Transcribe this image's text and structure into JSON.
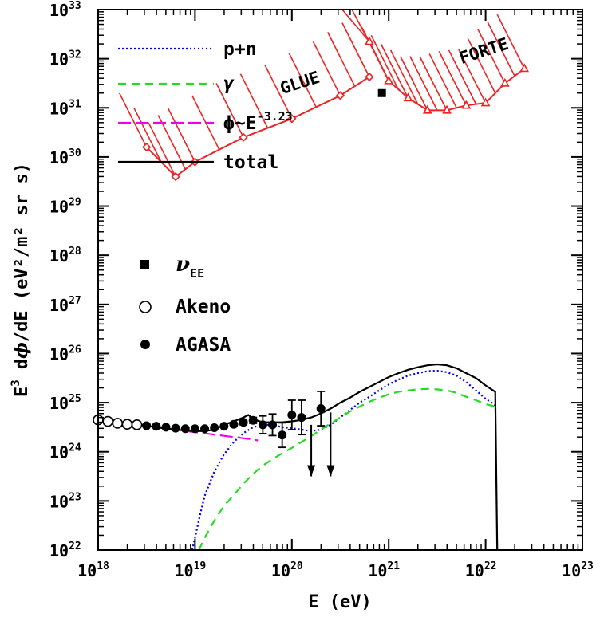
{
  "chart_data": {
    "type": "line",
    "xscale": "log",
    "yscale": "log",
    "xlim": [
      1e+18,
      1e+23
    ],
    "ylim": [
      1e+22,
      1e+33
    ],
    "x_ticks": [
      "18",
      "19",
      "20",
      "21",
      "22",
      "23"
    ],
    "y_ticks": [
      "22",
      "23",
      "24",
      "25",
      "26",
      "27",
      "28",
      "29",
      "30",
      "31",
      "32",
      "33"
    ],
    "tick_base": "10",
    "xlabel": "E (eV)",
    "ylabel": {
      "prefix": "E",
      "prefix_sup": "3",
      "middle": " d",
      "phi": "ϕ",
      "suffix": "/dE (eV²/m² sr s)"
    },
    "series": [
      {
        "name": "p+n",
        "color": "#0000ee",
        "dash": "2,3",
        "points": [
          [
            18.97,
            22.0
          ],
          [
            19.0,
            22.25
          ],
          [
            19.05,
            22.7
          ],
          [
            19.1,
            23.1
          ],
          [
            19.2,
            23.6
          ],
          [
            19.3,
            23.95
          ],
          [
            19.4,
            24.2
          ],
          [
            19.5,
            24.38
          ],
          [
            19.6,
            24.5
          ],
          [
            19.7,
            24.55
          ],
          [
            19.8,
            24.55
          ],
          [
            19.9,
            24.5
          ],
          [
            20.0,
            24.48
          ],
          [
            20.1,
            24.45
          ],
          [
            20.2,
            24.42
          ],
          [
            20.3,
            24.45
          ],
          [
            20.4,
            24.55
          ],
          [
            20.5,
            24.7
          ],
          [
            20.6,
            24.85
          ],
          [
            20.7,
            25.0
          ],
          [
            20.8,
            25.12
          ],
          [
            20.9,
            25.25
          ],
          [
            21.0,
            25.37
          ],
          [
            21.1,
            25.47
          ],
          [
            21.2,
            25.55
          ],
          [
            21.3,
            25.6
          ],
          [
            21.4,
            25.64
          ],
          [
            21.5,
            25.65
          ],
          [
            21.6,
            25.62
          ],
          [
            21.7,
            25.55
          ],
          [
            21.8,
            25.42
          ],
          [
            21.9,
            25.25
          ],
          [
            22.0,
            25.08
          ],
          [
            22.1,
            24.95
          ]
        ]
      },
      {
        "name": "γ",
        "color": "#22dd22",
        "dash": "10,7",
        "points": [
          [
            19.04,
            22.0
          ],
          [
            19.1,
            22.25
          ],
          [
            19.2,
            22.6
          ],
          [
            19.3,
            22.9
          ],
          [
            19.4,
            23.12
          ],
          [
            19.5,
            23.35
          ],
          [
            19.6,
            23.55
          ],
          [
            19.7,
            23.72
          ],
          [
            19.8,
            23.85
          ],
          [
            19.9,
            23.97
          ],
          [
            20.0,
            24.08
          ],
          [
            20.1,
            24.2
          ],
          [
            20.2,
            24.32
          ],
          [
            20.3,
            24.45
          ],
          [
            20.4,
            24.58
          ],
          [
            20.5,
            24.7
          ],
          [
            20.6,
            24.82
          ],
          [
            20.7,
            24.92
          ],
          [
            20.8,
            25.02
          ],
          [
            20.9,
            25.1
          ],
          [
            21.0,
            25.17
          ],
          [
            21.1,
            25.22
          ],
          [
            21.2,
            25.25
          ],
          [
            21.3,
            25.27
          ],
          [
            21.4,
            25.28
          ],
          [
            21.5,
            25.27
          ],
          [
            21.6,
            25.25
          ],
          [
            21.7,
            25.2
          ],
          [
            21.8,
            25.12
          ],
          [
            21.9,
            25.05
          ],
          [
            22.0,
            24.97
          ],
          [
            22.1,
            24.92
          ]
        ]
      },
      {
        "name": "ϕ~E",
        "name_sup": "-3.23",
        "color": "#ee00ee",
        "dash": "16,6",
        "points": [
          [
            18.0,
            24.65
          ],
          [
            18.2,
            24.6
          ],
          [
            18.4,
            24.56
          ],
          [
            18.6,
            24.5
          ],
          [
            18.8,
            24.45
          ],
          [
            19.0,
            24.4
          ],
          [
            19.2,
            24.35
          ],
          [
            19.4,
            24.3
          ],
          [
            19.6,
            24.25
          ],
          [
            19.65,
            24.23
          ]
        ]
      },
      {
        "name": "total",
        "color": "#000000",
        "dash": "",
        "points": [
          [
            18.0,
            24.65
          ],
          [
            18.2,
            24.6
          ],
          [
            18.4,
            24.56
          ],
          [
            18.6,
            24.5
          ],
          [
            18.8,
            24.45
          ],
          [
            19.0,
            24.42
          ],
          [
            19.1,
            24.42
          ],
          [
            19.2,
            24.45
          ],
          [
            19.3,
            24.55
          ],
          [
            19.4,
            24.62
          ],
          [
            19.5,
            24.7
          ],
          [
            19.55,
            24.75
          ],
          [
            19.62,
            24.65
          ],
          [
            19.7,
            24.6
          ],
          [
            19.8,
            24.6
          ],
          [
            19.9,
            24.6
          ],
          [
            20.0,
            24.62
          ],
          [
            20.1,
            24.65
          ],
          [
            20.2,
            24.7
          ],
          [
            20.3,
            24.78
          ],
          [
            20.4,
            24.88
          ],
          [
            20.5,
            25.0
          ],
          [
            20.6,
            25.1
          ],
          [
            20.7,
            25.22
          ],
          [
            20.8,
            25.32
          ],
          [
            20.9,
            25.42
          ],
          [
            21.0,
            25.52
          ],
          [
            21.1,
            25.6
          ],
          [
            21.2,
            25.67
          ],
          [
            21.3,
            25.72
          ],
          [
            21.4,
            25.76
          ],
          [
            21.5,
            25.78
          ],
          [
            21.6,
            25.76
          ],
          [
            21.7,
            25.7
          ],
          [
            21.8,
            25.6
          ],
          [
            21.9,
            25.5
          ],
          [
            22.0,
            25.35
          ],
          [
            22.1,
            25.22
          ],
          [
            22.12,
            22.0
          ]
        ]
      }
    ],
    "limits": [
      {
        "name": "GLUE",
        "color": "#ee2222",
        "marker": "diamond",
        "points": [
          [
            18.5,
            30.2
          ],
          [
            18.8,
            29.6
          ],
          [
            19.0,
            29.9
          ],
          [
            19.5,
            30.4
          ],
          [
            20.0,
            30.78
          ],
          [
            20.5,
            31.25
          ],
          [
            20.8,
            31.63
          ]
        ],
        "hatch_len": 1.1,
        "hatch_dx": 0.28
      },
      {
        "name": "FORTE",
        "color": "#ee2222",
        "marker": "triangle",
        "points": [
          [
            20.8,
            32.35
          ],
          [
            21.0,
            31.55
          ],
          [
            21.2,
            31.2
          ],
          [
            21.4,
            30.95
          ],
          [
            21.6,
            30.95
          ],
          [
            21.8,
            31.05
          ],
          [
            22.0,
            31.1
          ],
          [
            22.2,
            31.5
          ],
          [
            22.4,
            31.8
          ]
        ],
        "hatch_len": 1.1,
        "hatch_dx": 0.28
      }
    ],
    "markers": [
      {
        "name": "ν",
        "name_sub": "EE",
        "kind": "square",
        "color": "#000000",
        "points": [
          [
            20.93,
            31.3
          ]
        ]
      },
      {
        "name": "Akeno",
        "kind": "open-circle",
        "color": "#000000",
        "points": [
          [
            18.0,
            24.65
          ],
          [
            18.1,
            24.62
          ],
          [
            18.2,
            24.58
          ],
          [
            18.3,
            24.56
          ],
          [
            18.4,
            24.55
          ]
        ]
      },
      {
        "name": "AGASA",
        "kind": "filled-circle",
        "color": "#000000",
        "points": [
          [
            18.5,
            24.53,
            0
          ],
          [
            18.6,
            24.52,
            0
          ],
          [
            18.7,
            24.5,
            0
          ],
          [
            18.8,
            24.48,
            0
          ],
          [
            18.9,
            24.47,
            0
          ],
          [
            19.0,
            24.47,
            0
          ],
          [
            19.1,
            24.47,
            0
          ],
          [
            19.2,
            24.49,
            0
          ],
          [
            19.3,
            24.52,
            0
          ],
          [
            19.4,
            24.56,
            0
          ],
          [
            19.5,
            24.6,
            0.05
          ],
          [
            19.6,
            24.64,
            0.06
          ],
          [
            19.7,
            24.55,
            0.18
          ],
          [
            19.8,
            24.55,
            0.22
          ],
          [
            19.9,
            24.34,
            0.25
          ],
          [
            20.0,
            24.75,
            0.3
          ],
          [
            20.1,
            24.7,
            0.35
          ],
          [
            20.3,
            24.88,
            0.35
          ]
        ]
      }
    ],
    "upper_limits": [
      {
        "x": 20.2,
        "y": 24.55,
        "y_to": 23.5
      },
      {
        "x": 20.4,
        "y": 24.8,
        "y_to": 23.5
      }
    ],
    "annotations": [
      {
        "text": "GLUE",
        "x": 20.1,
        "y": 31.4,
        "angle": -18
      },
      {
        "text": "FORTE",
        "x": 22.0,
        "y": 32.05,
        "angle": -18
      }
    ],
    "legend_placement": "top-left"
  }
}
